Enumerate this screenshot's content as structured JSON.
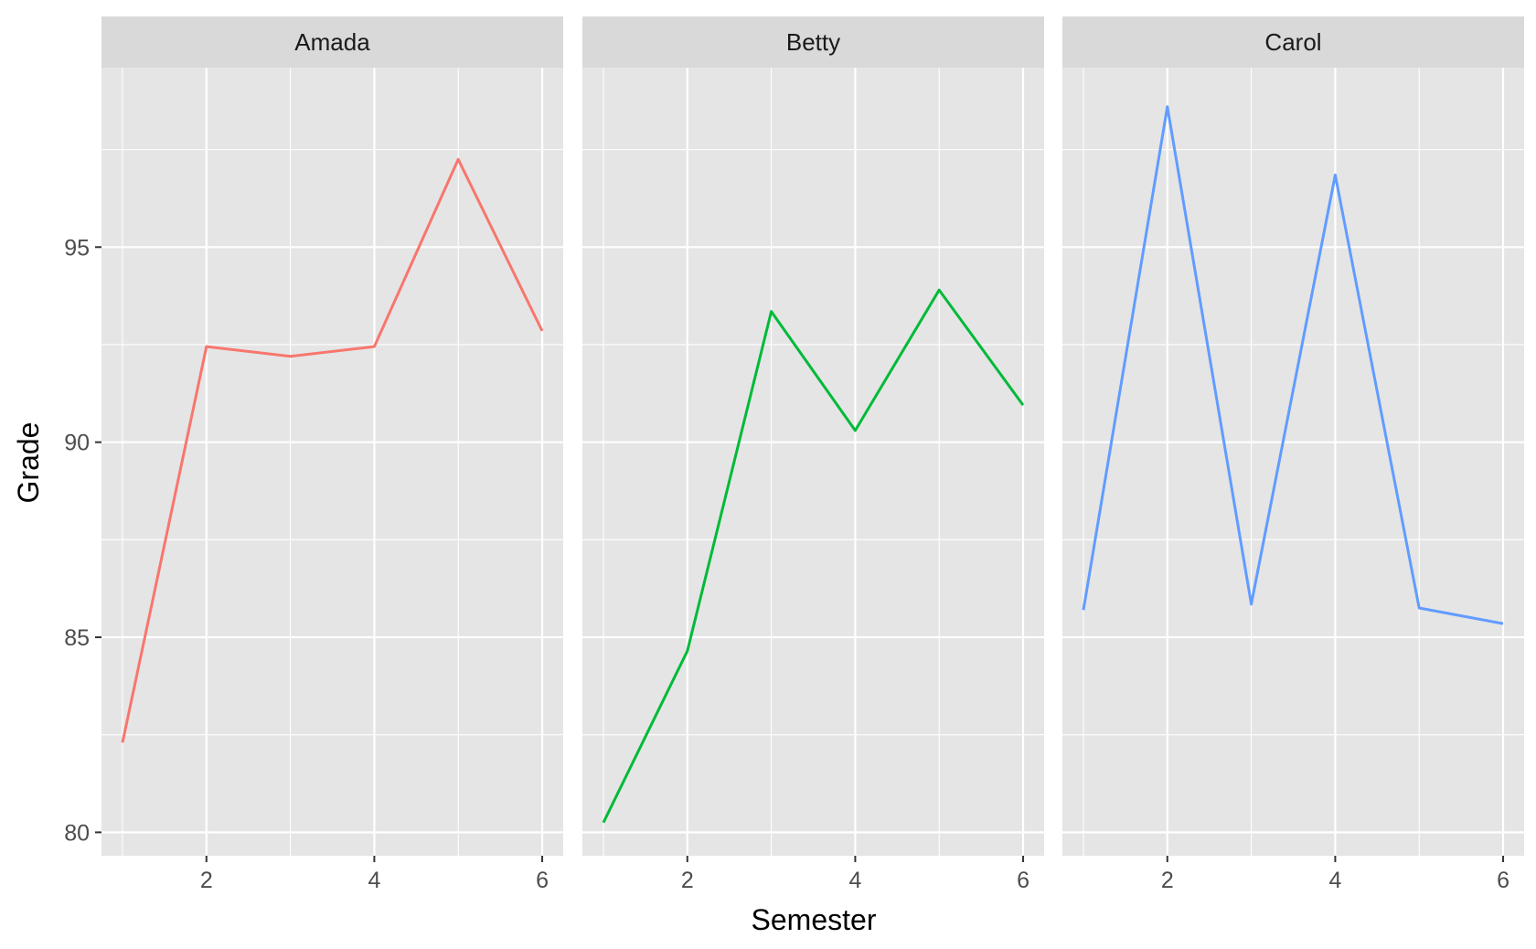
{
  "chart_data": {
    "type": "line",
    "facet_by": "student",
    "xlabel": "Semester",
    "ylabel": "Grade",
    "xlim": [
      0.75,
      6.25
    ],
    "ylim": [
      79.4,
      99.6
    ],
    "x_ticks": [
      2,
      4,
      6
    ],
    "y_ticks": [
      80,
      85,
      90,
      95
    ],
    "grid": true,
    "legend": "none",
    "panel_background": "#e5e5e5",
    "strip_background": "#d9d9d9",
    "grid_color": "#ffffff",
    "x": [
      1,
      2,
      3,
      4,
      5,
      6
    ],
    "series": [
      {
        "name": "Amada",
        "color": "#f8766d",
        "values": [
          82.3,
          92.45,
          92.2,
          92.45,
          97.25,
          92.85
        ]
      },
      {
        "name": "Betty",
        "color": "#00ba38",
        "values": [
          80.25,
          84.65,
          93.35,
          90.3,
          93.9,
          90.95
        ]
      },
      {
        "name": "Carol",
        "color": "#619cff",
        "values": [
          85.7,
          98.6,
          85.85,
          96.85,
          85.75,
          85.35
        ]
      }
    ]
  }
}
